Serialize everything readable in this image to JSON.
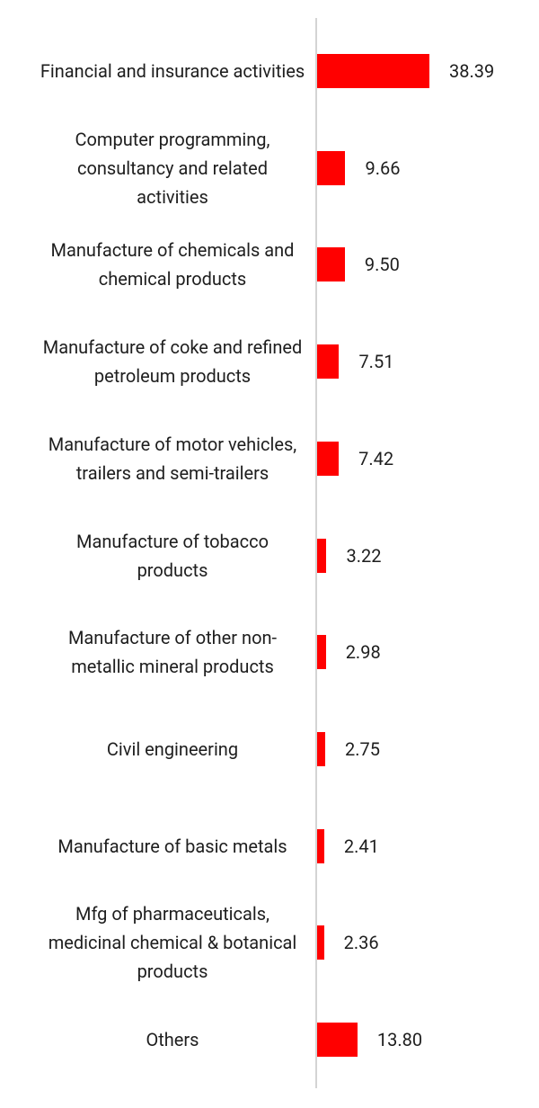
{
  "chart_data": {
    "type": "bar",
    "orientation": "horizontal",
    "categories": [
      "Financial and insurance activities",
      "Computer programming, consultancy and related activities",
      "Manufacture of chemicals and chemical products",
      "Manufacture of coke and refined petroleum products",
      "Manufacture of motor vehicles, trailers and semi-trailers",
      "Manufacture of tobacco products",
      "Manufacture of other non-metallic mineral products",
      "Civil engineering",
      "Manufacture of basic metals",
      "Mfg of pharmaceuticals, medicinal chemical & botanical products",
      "Others"
    ],
    "values": [
      38.39,
      9.66,
      9.5,
      7.51,
      7.42,
      3.22,
      2.98,
      2.75,
      2.41,
      2.36,
      13.8
    ],
    "value_labels": [
      "38.39",
      "9.66",
      "9.50",
      "7.51",
      "7.42",
      "3.22",
      "2.98",
      "2.75",
      "2.41",
      "2.36",
      "13.80"
    ],
    "color": "#ff0000"
  }
}
